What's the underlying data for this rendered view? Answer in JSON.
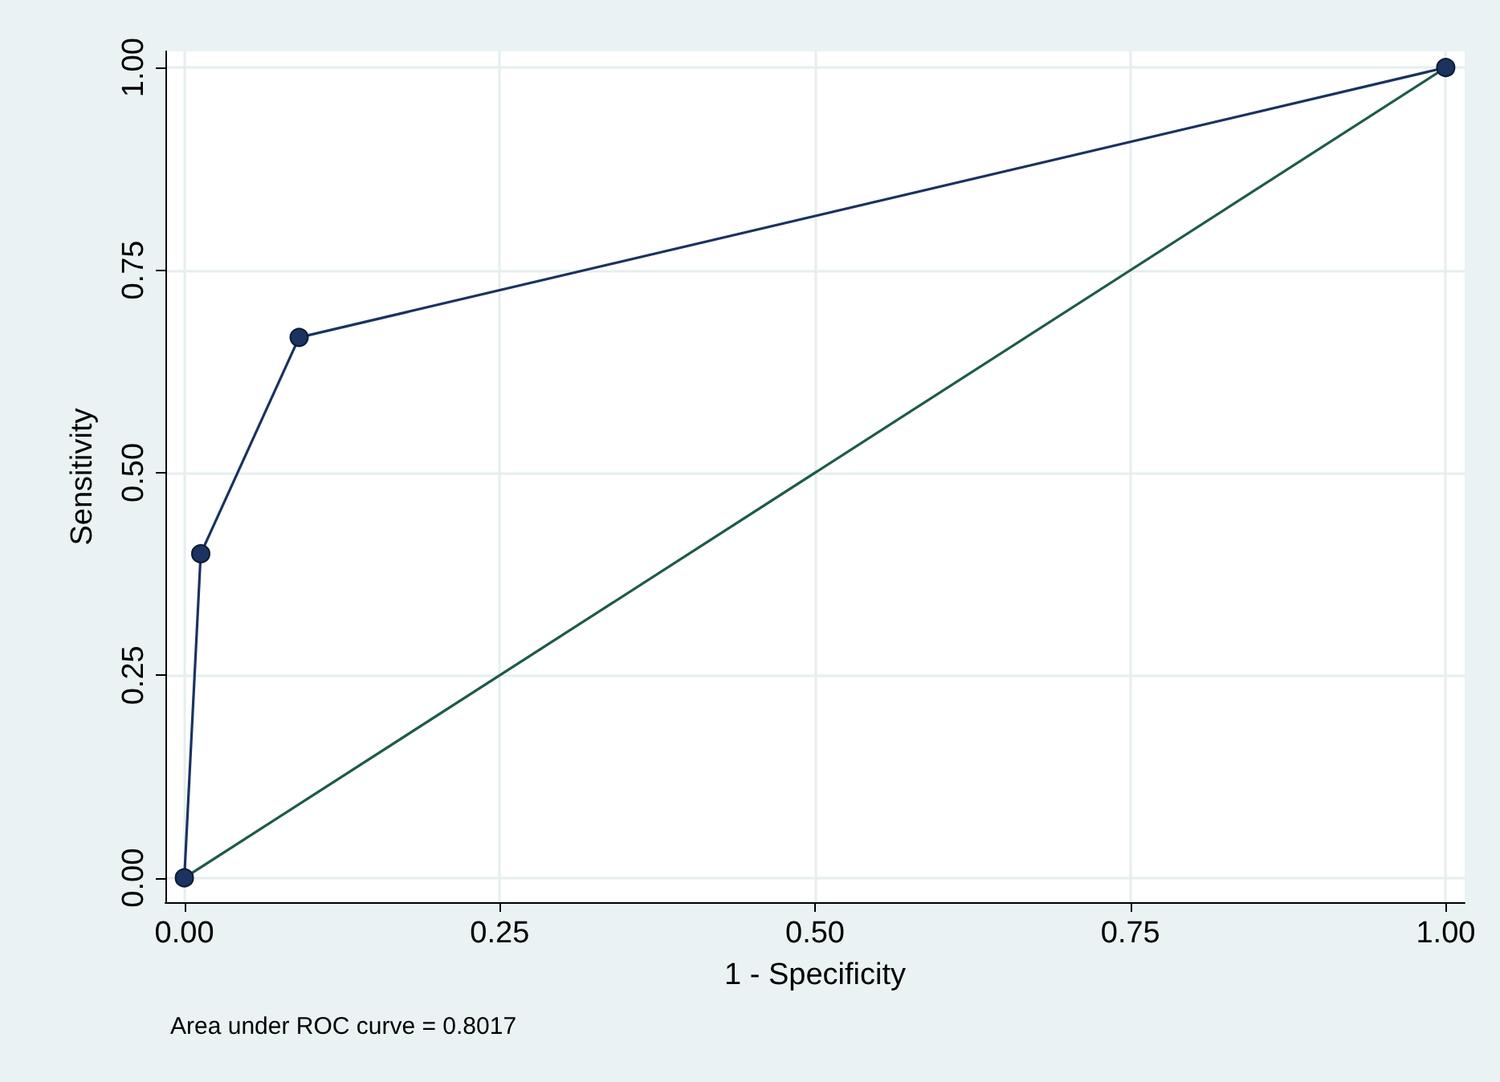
{
  "chart_data": {
    "type": "line",
    "xlabel": "1 - Specificity",
    "ylabel": "Sensitivity",
    "series": [
      {
        "x": [
          0,
          0.013,
          0.091,
          1
        ],
        "values": [
          0,
          0.4,
          0.667,
          1
        ],
        "color": "#1a3360",
        "marker": "circle"
      },
      {
        "x": [
          0,
          1
        ],
        "values": [
          0,
          1
        ],
        "color": "#1e5a4a",
        "marker": "none"
      }
    ],
    "xlim": [
      -0.015,
      1.015
    ],
    "ylim": [
      -0.03,
      1.02
    ],
    "xticks": [
      {
        "value": 0,
        "label": "0.00"
      },
      {
        "value": 0.25,
        "label": "0.25"
      },
      {
        "value": 0.5,
        "label": "0.50"
      },
      {
        "value": 0.75,
        "label": "0.75"
      },
      {
        "value": 1,
        "label": "1.00"
      }
    ],
    "yticks": [
      {
        "value": 0,
        "label": "0.00"
      },
      {
        "value": 0.25,
        "label": "0.25"
      },
      {
        "value": 0.5,
        "label": "0.50"
      },
      {
        "value": 0.75,
        "label": "0.75"
      },
      {
        "value": 1,
        "label": "1.00"
      }
    ],
    "grid": true,
    "line_style": "solid",
    "annotations": [
      "Area under ROC curve = 0.8017"
    ]
  }
}
